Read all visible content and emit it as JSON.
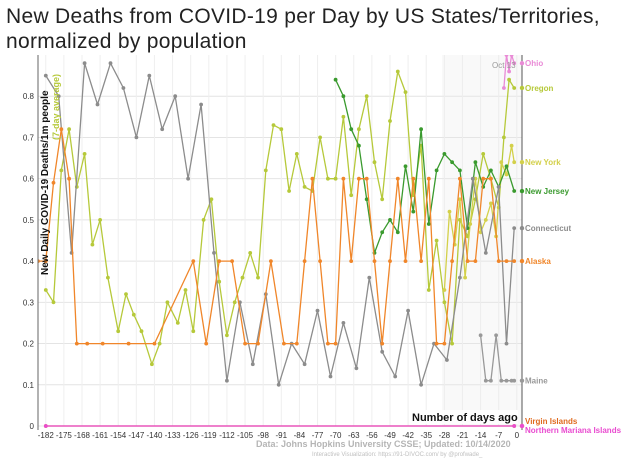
{
  "title": "New Deaths from COVID-19 per Day by US States/Territories, normalized by population",
  "ylabel": "New Daily COVID-19 Deaths/1m people",
  "ylabel_sub": "(7-day average)",
  "xlabel": "Number of days ago",
  "date_marker": "Oct 13",
  "source": "Data: Johns Hopkins University CSSE; Updated: 10/14/2020",
  "credit": "Interactive Visualization: https://91-DIVOC.com/ by @profwade_",
  "chart_data": {
    "type": "line",
    "xlabel": "Number of days ago",
    "ylabel": "New Daily COVID-19 Deaths/1m people",
    "xlim": [
      -185,
      2
    ],
    "ylim": [
      0,
      0.9
    ],
    "x_ticks": [
      -182,
      -175,
      -168,
      -161,
      -154,
      -147,
      -140,
      -133,
      -126,
      -119,
      -112,
      -105,
      -98,
      -91,
      -84,
      -77,
      -70,
      -63,
      -56,
      -49,
      -42,
      -35,
      -28,
      -21,
      -14,
      -7,
      0
    ],
    "y_ticks": [
      0,
      0.1,
      0.2,
      0.3,
      0.4,
      0.5,
      0.6,
      0.7,
      0.8
    ],
    "series": [
      {
        "name": "Ohio",
        "color": "#e98ad6",
        "end_value": 0.88,
        "points": [
          [
            -5,
            0.82
          ],
          [
            -4,
            0.9
          ],
          [
            -3,
            0.86
          ],
          [
            -2,
            0.9
          ],
          [
            -1,
            0.88
          ]
        ]
      },
      {
        "name": "Oregon",
        "color": "#b6c93a",
        "end_value": 0.82,
        "points": [
          [
            -182,
            0.33
          ],
          [
            -179,
            0.3
          ],
          [
            -176,
            0.62
          ],
          [
            -173,
            0.72
          ],
          [
            -170,
            0.58
          ],
          [
            -167,
            0.66
          ],
          [
            -164,
            0.44
          ],
          [
            -161,
            0.5
          ],
          [
            -158,
            0.36
          ],
          [
            -154,
            0.23
          ],
          [
            -151,
            0.32
          ],
          [
            -148,
            0.27
          ],
          [
            -145,
            0.23
          ],
          [
            -141,
            0.15
          ],
          [
            -138,
            0.2
          ],
          [
            -135,
            0.3
          ],
          [
            -131,
            0.25
          ],
          [
            -128,
            0.33
          ],
          [
            -125,
            0.23
          ],
          [
            -121,
            0.5
          ],
          [
            -118,
            0.55
          ],
          [
            -115,
            0.35
          ],
          [
            -112,
            0.22
          ],
          [
            -109,
            0.3
          ],
          [
            -106,
            0.36
          ],
          [
            -103,
            0.42
          ],
          [
            -100,
            0.36
          ],
          [
            -97,
            0.62
          ],
          [
            -94,
            0.73
          ],
          [
            -91,
            0.72
          ],
          [
            -88,
            0.57
          ],
          [
            -85,
            0.66
          ],
          [
            -82,
            0.58
          ],
          [
            -79,
            0.57
          ],
          [
            -76,
            0.7
          ],
          [
            -73,
            0.6
          ],
          [
            -70,
            0.6
          ],
          [
            -67,
            0.75
          ],
          [
            -64,
            0.56
          ],
          [
            -61,
            0.72
          ],
          [
            -58,
            0.8
          ],
          [
            -55,
            0.64
          ],
          [
            -52,
            0.55
          ],
          [
            -49,
            0.74
          ],
          [
            -46,
            0.86
          ],
          [
            -43,
            0.81
          ],
          [
            -40,
            0.56
          ],
          [
            -37,
            0.68
          ],
          [
            -34,
            0.33
          ],
          [
            -31,
            0.45
          ],
          [
            -28,
            0.3
          ],
          [
            -25,
            0.2
          ],
          [
            -22,
            0.5
          ],
          [
            -19,
            0.46
          ],
          [
            -16,
            0.55
          ],
          [
            -13,
            0.66
          ],
          [
            -10,
            0.6
          ],
          [
            -7,
            0.53
          ],
          [
            -5,
            0.7
          ],
          [
            -3,
            0.84
          ],
          [
            -1,
            0.82
          ]
        ]
      },
      {
        "name": "New York",
        "color": "#d3d04a",
        "end_value": 0.64,
        "points": [
          [
            -28,
            0.33
          ],
          [
            -26,
            0.52
          ],
          [
            -24,
            0.44
          ],
          [
            -22,
            0.55
          ],
          [
            -20,
            0.36
          ],
          [
            -18,
            0.49
          ],
          [
            -16,
            0.6
          ],
          [
            -14,
            0.47
          ],
          [
            -12,
            0.5
          ],
          [
            -10,
            0.54
          ],
          [
            -8,
            0.46
          ],
          [
            -6,
            0.64
          ],
          [
            -4,
            0.61
          ],
          [
            -2,
            0.68
          ],
          [
            -1,
            0.64
          ]
        ]
      },
      {
        "name": "New Jersey",
        "color": "#3a9a2e",
        "end_value": 0.57,
        "points": [
          [
            -70,
            0.84
          ],
          [
            -67,
            0.8
          ],
          [
            -64,
            0.72
          ],
          [
            -61,
            0.68
          ],
          [
            -58,
            0.55
          ],
          [
            -55,
            0.42
          ],
          [
            -52,
            0.47
          ],
          [
            -49,
            0.5
          ],
          [
            -46,
            0.47
          ],
          [
            -43,
            0.63
          ],
          [
            -40,
            0.52
          ],
          [
            -37,
            0.72
          ],
          [
            -34,
            0.49
          ],
          [
            -31,
            0.62
          ],
          [
            -28,
            0.66
          ],
          [
            -25,
            0.64
          ],
          [
            -22,
            0.62
          ],
          [
            -19,
            0.48
          ],
          [
            -16,
            0.64
          ],
          [
            -13,
            0.58
          ],
          [
            -10,
            0.62
          ],
          [
            -7,
            0.58
          ],
          [
            -4,
            0.63
          ],
          [
            -1,
            0.57
          ]
        ]
      },
      {
        "name": "Connecticut",
        "color": "#8c8c8c",
        "end_value": 0.48,
        "points": [
          [
            -182,
            0.85
          ],
          [
            -177,
            0.8
          ],
          [
            -172,
            0.42
          ],
          [
            -167,
            0.88
          ],
          [
            -162,
            0.78
          ],
          [
            -157,
            0.88
          ],
          [
            -152,
            0.82
          ],
          [
            -147,
            0.7
          ],
          [
            -142,
            0.85
          ],
          [
            -137,
            0.72
          ],
          [
            -132,
            0.8
          ],
          [
            -127,
            0.6
          ],
          [
            -122,
            0.78
          ],
          [
            -117,
            0.42
          ],
          [
            -112,
            0.11
          ],
          [
            -107,
            0.3
          ],
          [
            -102,
            0.15
          ],
          [
            -97,
            0.32
          ],
          [
            -92,
            0.1
          ],
          [
            -87,
            0.2
          ],
          [
            -82,
            0.15
          ],
          [
            -77,
            0.28
          ],
          [
            -72,
            0.12
          ],
          [
            -67,
            0.25
          ],
          [
            -62,
            0.14
          ],
          [
            -57,
            0.36
          ],
          [
            -52,
            0.18
          ],
          [
            -47,
            0.12
          ],
          [
            -42,
            0.28
          ],
          [
            -37,
            0.1
          ],
          [
            -32,
            0.2
          ],
          [
            -27,
            0.16
          ],
          [
            -22,
            0.36
          ],
          [
            -17,
            0.6
          ],
          [
            -12,
            0.42
          ],
          [
            -7,
            0.58
          ],
          [
            -4,
            0.2
          ],
          [
            -1,
            0.48
          ]
        ]
      },
      {
        "name": "Alaska",
        "color": "#f0862a",
        "end_value": 0.4,
        "points": [
          [
            -185,
            0.4
          ],
          [
            -182,
            0.4
          ],
          [
            -179,
            0.59
          ],
          [
            -176,
            0.72
          ],
          [
            -173,
            0.6
          ],
          [
            -170,
            0.2
          ],
          [
            -166,
            0.2
          ],
          [
            -160,
            0.2
          ],
          [
            -150,
            0.2
          ],
          [
            -140,
            0.2
          ],
          [
            -125,
            0.4
          ],
          [
            -120,
            0.2
          ],
          [
            -115,
            0.4
          ],
          [
            -110,
            0.4
          ],
          [
            -105,
            0.2
          ],
          [
            -100,
            0.2
          ],
          [
            -95,
            0.4
          ],
          [
            -90,
            0.2
          ],
          [
            -85,
            0.2
          ],
          [
            -82,
            0.4
          ],
          [
            -79,
            0.6
          ],
          [
            -76,
            0.4
          ],
          [
            -73,
            0.2
          ],
          [
            -70,
            0.2
          ],
          [
            -67,
            0.6
          ],
          [
            -64,
            0.4
          ],
          [
            -61,
            0.6
          ],
          [
            -58,
            0.6
          ],
          [
            -55,
            0.4
          ],
          [
            -52,
            0.2
          ],
          [
            -49,
            0.4
          ],
          [
            -46,
            0.6
          ],
          [
            -43,
            0.4
          ],
          [
            -40,
            0.6
          ],
          [
            -37,
            0.4
          ],
          [
            -34,
            0.6
          ],
          [
            -31,
            0.2
          ],
          [
            -28,
            0.2
          ],
          [
            -25,
            0.4
          ],
          [
            -22,
            0.6
          ],
          [
            -19,
            0.4
          ],
          [
            -16,
            0.4
          ],
          [
            -13,
            0.6
          ],
          [
            -10,
            0.6
          ],
          [
            -7,
            0.4
          ],
          [
            -4,
            0.4
          ],
          [
            -1,
            0.4
          ]
        ]
      },
      {
        "name": "Maine",
        "color": "#999999",
        "end_value": 0.11,
        "points": [
          [
            -14,
            0.22
          ],
          [
            -12,
            0.11
          ],
          [
            -10,
            0.11
          ],
          [
            -8,
            0.22
          ],
          [
            -6,
            0.11
          ],
          [
            -4,
            0.11
          ],
          [
            -2,
            0.11
          ],
          [
            -1,
            0.11
          ]
        ]
      },
      {
        "name": "Virgin Islands",
        "color": "#e06a1e",
        "end_value": 0.0,
        "points": [
          [
            -182,
            0.0
          ],
          [
            -1,
            0.0
          ]
        ]
      },
      {
        "name": "Northern Mariana Islands",
        "color": "#e94bd0",
        "end_value": 0.0,
        "points": [
          [
            -182,
            0.0
          ],
          [
            -1,
            0.0
          ]
        ]
      }
    ]
  }
}
